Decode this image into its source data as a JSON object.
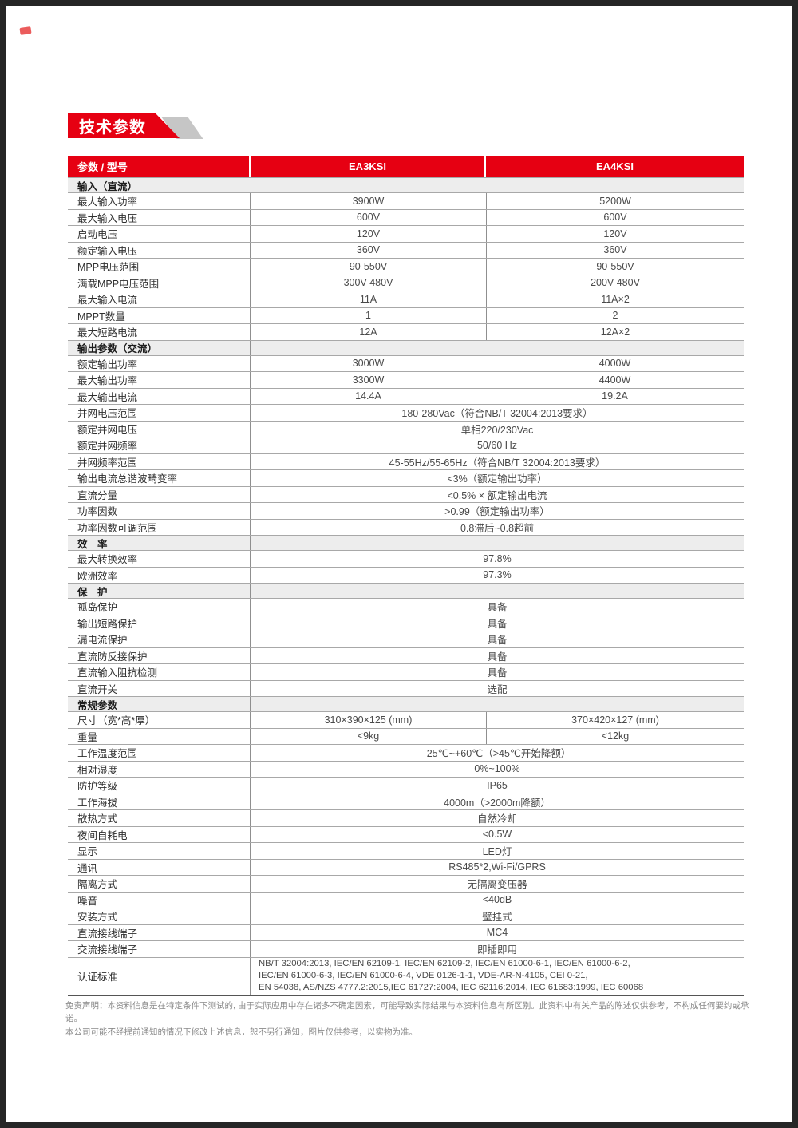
{
  "page": {
    "title": "技术参数",
    "disclaimer": "免责声明：本资料信息是在特定条件下测试的, 由于实际应用中存在诸多不确定因素，可能导致实际结果与本资料信息有所区别。此资料中有关产品的陈述仅供参考，不构成任何要约或承诺。\n本公司可能不经提前通知的情况下修改上述信息，恕不另行通知，图片仅供参考，以实物为准。"
  },
  "colors": {
    "accent_red": "#e60012",
    "section_bg": "#ededed",
    "grid_line": "#a8a8a8"
  },
  "table": {
    "header": {
      "param": "参数 / 型号",
      "model1": "EA3KSI",
      "model2": "EA4KSI"
    },
    "rows": [
      {
        "t": "sec",
        "label": "输入（直流）",
        "nl": true
      },
      {
        "t": "two",
        "label": "最大输入功率",
        "v1": "3900W",
        "v2": "5200W",
        "div": true
      },
      {
        "t": "two",
        "label": "最大输入电压",
        "v1": "600V",
        "v2": "600V",
        "div": true
      },
      {
        "t": "two",
        "label": "启动电压",
        "v1": "120V",
        "v2": "120V",
        "div": true
      },
      {
        "t": "two",
        "label": "额定输入电压",
        "v1": "360V",
        "v2": "360V",
        "div": true
      },
      {
        "t": "two",
        "label": "MPP电压范围",
        "v1": "90-550V",
        "v2": "90-550V",
        "div": true
      },
      {
        "t": "two",
        "label": "满载MPP电压范围",
        "v1": "300V-480V",
        "v2": "200V-480V",
        "div": true
      },
      {
        "t": "two",
        "label": "最大输入电流",
        "v1": "11A",
        "v2": "11A×2",
        "div": true
      },
      {
        "t": "two",
        "label": "MPPT数量",
        "v1": "1",
        "v2": "2",
        "div": true
      },
      {
        "t": "two",
        "label": "最大短路电流",
        "v1": "12A",
        "v2": "12A×2",
        "div": true
      },
      {
        "t": "sec",
        "label": "输出参数（交流）"
      },
      {
        "t": "two",
        "label": "额定输出功率",
        "v1": "3000W",
        "v2": "4000W",
        "div": false
      },
      {
        "t": "two",
        "label": "最大输出功率",
        "v1": "3300W",
        "v2": "4400W",
        "div": false
      },
      {
        "t": "two",
        "label": "最大输出电流",
        "v1": "14.4A",
        "v2": "19.2A",
        "div": false
      },
      {
        "t": "span",
        "label": "并网电压范围",
        "v": "180-280Vac（符合NB/T 32004:2013要求）"
      },
      {
        "t": "span",
        "label": "额定并网电压",
        "v": "单相220/230Vac"
      },
      {
        "t": "span",
        "label": "额定并网频率",
        "v": "50/60 Hz"
      },
      {
        "t": "span",
        "label": "并网频率范围",
        "v": "45-55Hz/55-65Hz（符合NB/T 32004:2013要求）"
      },
      {
        "t": "span",
        "label": "输出电流总谐波畸变率",
        "v": "<3%（额定输出功率）"
      },
      {
        "t": "span",
        "label": "直流分量",
        "v": "<0.5% × 额定输出电流"
      },
      {
        "t": "span",
        "label": "功率因数",
        "v": ">0.99（额定输出功率）"
      },
      {
        "t": "span",
        "label": "功率因数可调范围",
        "v": "0.8滞后~0.8超前"
      },
      {
        "t": "sec",
        "label": "效　率"
      },
      {
        "t": "span",
        "label": "最大转换效率",
        "v": "97.8%"
      },
      {
        "t": "span",
        "label": "欧洲效率",
        "v": "97.3%"
      },
      {
        "t": "sec",
        "label": "保　护"
      },
      {
        "t": "span",
        "label": "孤岛保护",
        "v": "具备"
      },
      {
        "t": "span",
        "label": "输出短路保护",
        "v": "具备"
      },
      {
        "t": "span",
        "label": "漏电流保护",
        "v": "具备"
      },
      {
        "t": "span",
        "label": "直流防反接保护",
        "v": "具备"
      },
      {
        "t": "span",
        "label": "直流输入阻抗检测",
        "v": "具备"
      },
      {
        "t": "span",
        "label": "直流开关",
        "v": "选配"
      },
      {
        "t": "sec",
        "label": "常规参数"
      },
      {
        "t": "two",
        "label": "尺寸（宽*高*厚）",
        "v1": "310×390×125 (mm)",
        "v2": "370×420×127 (mm)",
        "div": true
      },
      {
        "t": "two",
        "label": "重量",
        "v1": "<9kg",
        "v2": "<12kg",
        "div": true
      },
      {
        "t": "span",
        "label": "工作温度范围",
        "v": "-25℃~+60℃（>45℃开始降额）"
      },
      {
        "t": "span",
        "label": "相对湿度",
        "v": "0%~100%"
      },
      {
        "t": "span",
        "label": "防护等级",
        "v": "IP65"
      },
      {
        "t": "span",
        "label": "工作海拔",
        "v": "4000m（>2000m降额）"
      },
      {
        "t": "span",
        "label": "散热方式",
        "v": "自然冷却"
      },
      {
        "t": "span",
        "label": "夜间自耗电",
        "v": "<0.5W"
      },
      {
        "t": "span",
        "label": "显示",
        "v": "LED灯"
      },
      {
        "t": "span",
        "label": "通讯",
        "v": "RS485*2,Wi-Fi/GPRS"
      },
      {
        "t": "span",
        "label": "隔离方式",
        "v": "无隔离变压器"
      },
      {
        "t": "span",
        "label": "噪音",
        "v": "<40dB"
      },
      {
        "t": "span",
        "label": "安装方式",
        "v": "壁挂式"
      },
      {
        "t": "span",
        "label": "直流接线端子",
        "v": "MC4"
      },
      {
        "t": "span",
        "label": "交流接线端子",
        "v": "即插即用"
      },
      {
        "t": "cert",
        "label": "认证标准",
        "v": "NB/T 32004:2013, IEC/EN 62109-1, IEC/EN 62109-2, IEC/EN 61000-6-1, IEC/EN 61000-6-2,\nIEC/EN 61000-6-3, IEC/EN 61000-6-4,  VDE 0126-1-1, VDE-AR-N-4105, CEI 0-21,\nEN 54038, AS/NZS 4777.2:2015,IEC 61727:2004, IEC 62116:2014, IEC 61683:1999, IEC 60068"
      }
    ]
  }
}
